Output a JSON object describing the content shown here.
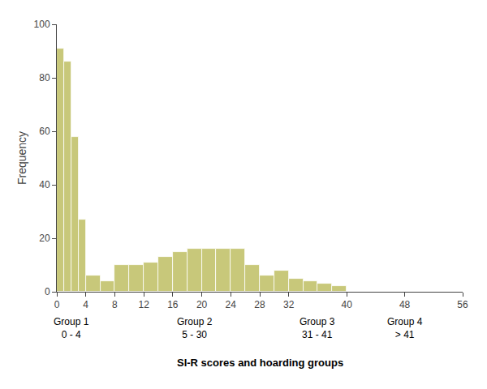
{
  "chart_data": {
    "type": "histogram",
    "bins": [
      0,
      1,
      2,
      3,
      4,
      6,
      8,
      10,
      12,
      14,
      16,
      18,
      20,
      22,
      24,
      26,
      28,
      30,
      32,
      34,
      36,
      38,
      40
    ],
    "values": [
      91,
      86,
      58,
      27,
      6,
      4,
      10,
      10,
      11,
      13,
      15,
      16,
      16,
      16,
      16,
      10,
      6,
      8,
      5,
      4,
      3,
      2
    ],
    "color": "#c8c87a",
    "xlim": [
      0,
      56
    ],
    "ylim": [
      0,
      100
    ],
    "xticks": [
      0,
      4,
      8,
      12,
      16,
      20,
      24,
      28,
      32,
      40,
      48,
      56
    ],
    "yticks": [
      0,
      20,
      40,
      60,
      80,
      100
    ],
    "ylabel": "Frequency",
    "xlabel": "SI-R scores and hoarding groups",
    "annotations": [
      {
        "x": 2,
        "text": [
          "Group 1",
          "0 - 4"
        ]
      },
      {
        "x": 19,
        "text": [
          "Group 2",
          "5 - 30"
        ]
      },
      {
        "x": 36,
        "text": [
          "Group 3",
          "31 - 41"
        ]
      },
      {
        "x": 48,
        "text": [
          "Group 4",
          "> 41"
        ]
      }
    ],
    "grid": false
  }
}
